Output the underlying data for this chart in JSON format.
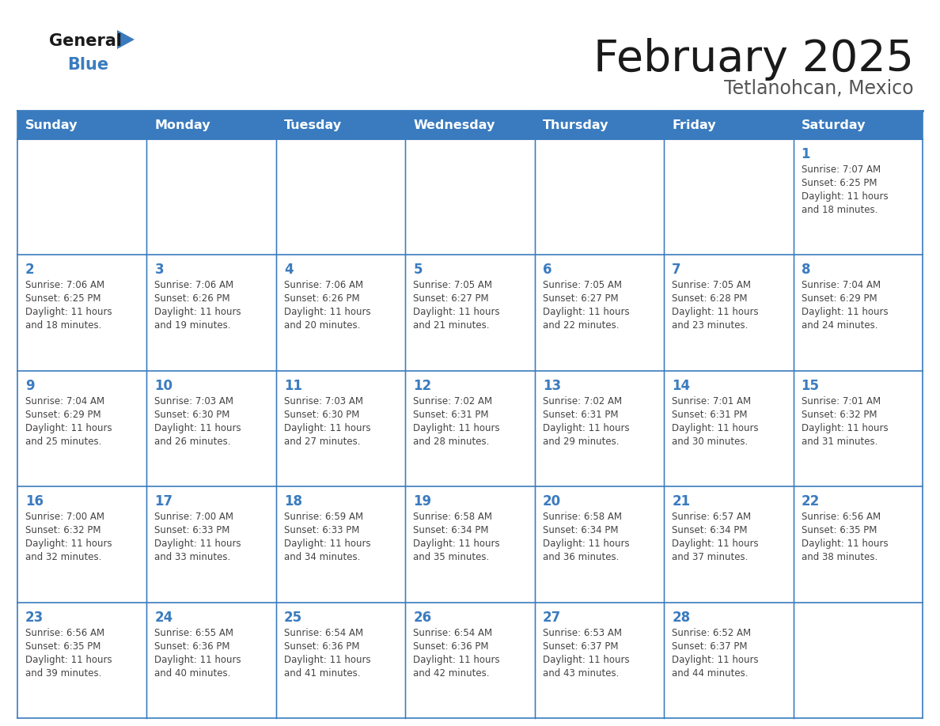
{
  "title": "February 2025",
  "subtitle": "Tetlanohcan, Mexico",
  "header_color": "#3a7bbf",
  "header_text_color": "#ffffff",
  "border_color": "#3a7bbf",
  "day_number_color": "#3a7bbf",
  "text_color": "#444444",
  "days_of_week": [
    "Sunday",
    "Monday",
    "Tuesday",
    "Wednesday",
    "Thursday",
    "Friday",
    "Saturday"
  ],
  "logo_general_color": "#1a1a1a",
  "logo_blue_color": "#3a7bbf",
  "title_color": "#1a1a1a",
  "subtitle_color": "#555555",
  "weeks": [
    [
      {
        "day": null,
        "info": null
      },
      {
        "day": null,
        "info": null
      },
      {
        "day": null,
        "info": null
      },
      {
        "day": null,
        "info": null
      },
      {
        "day": null,
        "info": null
      },
      {
        "day": null,
        "info": null
      },
      {
        "day": 1,
        "info": "Sunrise: 7:07 AM\nSunset: 6:25 PM\nDaylight: 11 hours\nand 18 minutes."
      }
    ],
    [
      {
        "day": 2,
        "info": "Sunrise: 7:06 AM\nSunset: 6:25 PM\nDaylight: 11 hours\nand 18 minutes."
      },
      {
        "day": 3,
        "info": "Sunrise: 7:06 AM\nSunset: 6:26 PM\nDaylight: 11 hours\nand 19 minutes."
      },
      {
        "day": 4,
        "info": "Sunrise: 7:06 AM\nSunset: 6:26 PM\nDaylight: 11 hours\nand 20 minutes."
      },
      {
        "day": 5,
        "info": "Sunrise: 7:05 AM\nSunset: 6:27 PM\nDaylight: 11 hours\nand 21 minutes."
      },
      {
        "day": 6,
        "info": "Sunrise: 7:05 AM\nSunset: 6:27 PM\nDaylight: 11 hours\nand 22 minutes."
      },
      {
        "day": 7,
        "info": "Sunrise: 7:05 AM\nSunset: 6:28 PM\nDaylight: 11 hours\nand 23 minutes."
      },
      {
        "day": 8,
        "info": "Sunrise: 7:04 AM\nSunset: 6:29 PM\nDaylight: 11 hours\nand 24 minutes."
      }
    ],
    [
      {
        "day": 9,
        "info": "Sunrise: 7:04 AM\nSunset: 6:29 PM\nDaylight: 11 hours\nand 25 minutes."
      },
      {
        "day": 10,
        "info": "Sunrise: 7:03 AM\nSunset: 6:30 PM\nDaylight: 11 hours\nand 26 minutes."
      },
      {
        "day": 11,
        "info": "Sunrise: 7:03 AM\nSunset: 6:30 PM\nDaylight: 11 hours\nand 27 minutes."
      },
      {
        "day": 12,
        "info": "Sunrise: 7:02 AM\nSunset: 6:31 PM\nDaylight: 11 hours\nand 28 minutes."
      },
      {
        "day": 13,
        "info": "Sunrise: 7:02 AM\nSunset: 6:31 PM\nDaylight: 11 hours\nand 29 minutes."
      },
      {
        "day": 14,
        "info": "Sunrise: 7:01 AM\nSunset: 6:31 PM\nDaylight: 11 hours\nand 30 minutes."
      },
      {
        "day": 15,
        "info": "Sunrise: 7:01 AM\nSunset: 6:32 PM\nDaylight: 11 hours\nand 31 minutes."
      }
    ],
    [
      {
        "day": 16,
        "info": "Sunrise: 7:00 AM\nSunset: 6:32 PM\nDaylight: 11 hours\nand 32 minutes."
      },
      {
        "day": 17,
        "info": "Sunrise: 7:00 AM\nSunset: 6:33 PM\nDaylight: 11 hours\nand 33 minutes."
      },
      {
        "day": 18,
        "info": "Sunrise: 6:59 AM\nSunset: 6:33 PM\nDaylight: 11 hours\nand 34 minutes."
      },
      {
        "day": 19,
        "info": "Sunrise: 6:58 AM\nSunset: 6:34 PM\nDaylight: 11 hours\nand 35 minutes."
      },
      {
        "day": 20,
        "info": "Sunrise: 6:58 AM\nSunset: 6:34 PM\nDaylight: 11 hours\nand 36 minutes."
      },
      {
        "day": 21,
        "info": "Sunrise: 6:57 AM\nSunset: 6:34 PM\nDaylight: 11 hours\nand 37 minutes."
      },
      {
        "day": 22,
        "info": "Sunrise: 6:56 AM\nSunset: 6:35 PM\nDaylight: 11 hours\nand 38 minutes."
      }
    ],
    [
      {
        "day": 23,
        "info": "Sunrise: 6:56 AM\nSunset: 6:35 PM\nDaylight: 11 hours\nand 39 minutes."
      },
      {
        "day": 24,
        "info": "Sunrise: 6:55 AM\nSunset: 6:36 PM\nDaylight: 11 hours\nand 40 minutes."
      },
      {
        "day": 25,
        "info": "Sunrise: 6:54 AM\nSunset: 6:36 PM\nDaylight: 11 hours\nand 41 minutes."
      },
      {
        "day": 26,
        "info": "Sunrise: 6:54 AM\nSunset: 6:36 PM\nDaylight: 11 hours\nand 42 minutes."
      },
      {
        "day": 27,
        "info": "Sunrise: 6:53 AM\nSunset: 6:37 PM\nDaylight: 11 hours\nand 43 minutes."
      },
      {
        "day": 28,
        "info": "Sunrise: 6:52 AM\nSunset: 6:37 PM\nDaylight: 11 hours\nand 44 minutes."
      },
      {
        "day": null,
        "info": null
      }
    ]
  ]
}
